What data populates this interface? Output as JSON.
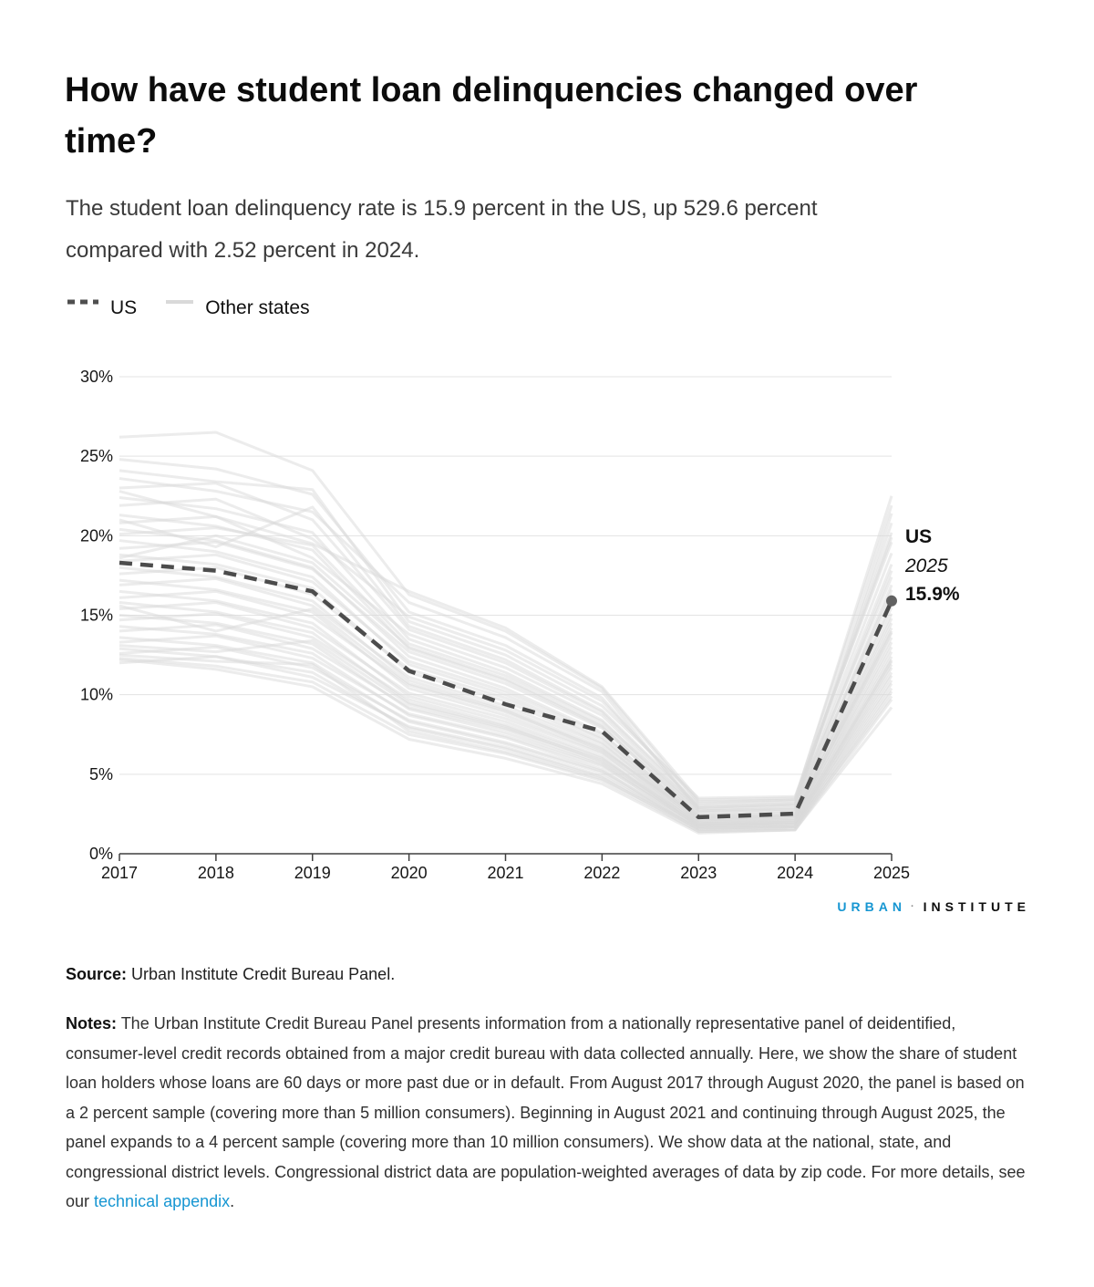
{
  "page": {
    "title": "How have student loan delinquencies changed over time?",
    "title_lines": [
      "How have student loan delinquencies changed over",
      "time?"
    ],
    "subtitle_lines": [
      "The student loan delinquency rate is 15.9 percent in the US, up 529.6 percent",
      "compared with 2.52 percent in 2024."
    ],
    "legend": {
      "us_label": "US",
      "other_label": "Other states"
    },
    "logo": {
      "urban": "URBAN",
      "separator": "·",
      "institute": "INSTITUTE"
    },
    "source_label": "Source:",
    "source_text": " Urban Institute Credit Bureau Panel.",
    "notes_label": "Notes:",
    "notes_text_before_link": " The Urban Institute Credit Bureau Panel presents information from a nationally representative panel of deidentified, consumer-level credit records obtained from a major credit bureau with data collected annually. Here, we show the share of student loan holders whose loans are 60 days or more past due or in default. From August 2017 through August 2020, the panel is based on a 2 percent sample (covering more than 5 million consumers). Beginning in August 2021 and continuing through August 2025, the panel expands to a 4 percent sample (covering more than 10 million consumers). We show data at the national, state, and congressional district levels. Congressional district data are population-weighted averages of data by zip code. For more details, see our ",
    "notes_link": "technical appendix",
    "notes_after_link": "."
  },
  "colors": {
    "us_line": "#4c4c4c",
    "us_dot": "#616161",
    "state_line": "#d9d9d9",
    "gridline": "#e3e3e3",
    "axis": "#3f3f3f",
    "tick_label": "#161616",
    "accent_blue": "#1696d2"
  },
  "chart_data": {
    "type": "line",
    "title": "How have student loan delinquencies changed over time?",
    "xlabel": "",
    "ylabel": "",
    "grid": true,
    "legend_position": "top-left",
    "legend_entries": [
      "US",
      "Other states"
    ],
    "categories": [
      "2017",
      "2018",
      "2019",
      "2020",
      "2021",
      "2022",
      "2023",
      "2024",
      "2025"
    ],
    "yticks": [
      "0%",
      "5%",
      "10%",
      "15%",
      "20%",
      "25%",
      "30%"
    ],
    "ylim": [
      0,
      30
    ],
    "series": [
      {
        "name": "US",
        "values": [
          18.3,
          17.8,
          16.5,
          11.5,
          9.4,
          7.7,
          2.3,
          2.52,
          15.9
        ]
      }
    ],
    "annotation": {
      "label": "US",
      "year": "2025",
      "value": "15.9%"
    },
    "other_states": [
      [
        26.2,
        26.5,
        24.1,
        16.3,
        14.0,
        10.4,
        3.2,
        3.4,
        22.5
      ],
      [
        24.8,
        24.2,
        22.6,
        15.2,
        13.1,
        9.8,
        2.9,
        3.1,
        20.8
      ],
      [
        24.1,
        23.4,
        22.9,
        14.6,
        12.5,
        9.3,
        3.5,
        3.6,
        19.6
      ],
      [
        23.6,
        22.8,
        21.5,
        15.8,
        13.6,
        10.2,
        2.7,
        2.9,
        21.4
      ],
      [
        23.0,
        23.3,
        21.0,
        14.1,
        12.0,
        8.9,
        3.0,
        3.2,
        18.9
      ],
      [
        22.4,
        21.7,
        20.2,
        13.5,
        11.4,
        8.4,
        2.6,
        2.8,
        17.8
      ],
      [
        21.9,
        22.3,
        19.8,
        14.9,
        12.8,
        9.6,
        3.3,
        3.4,
        19.9
      ],
      [
        21.3,
        20.6,
        19.1,
        12.9,
        10.9,
        8.0,
        2.4,
        2.6,
        16.9
      ],
      [
        20.8,
        21.2,
        18.6,
        13.8,
        11.7,
        8.7,
        2.8,
        3.0,
        18.2
      ],
      [
        20.4,
        19.7,
        18.0,
        12.4,
        10.4,
        7.6,
        2.2,
        2.4,
        15.8
      ],
      [
        20.1,
        20.5,
        19.4,
        13.2,
        11.2,
        8.3,
        2.9,
        3.1,
        17.4
      ],
      [
        19.7,
        19.0,
        17.4,
        11.9,
        10.0,
        7.3,
        2.1,
        2.3,
        15.1
      ],
      [
        19.2,
        19.6,
        17.9,
        12.7,
        10.7,
        7.9,
        2.5,
        2.7,
        16.3
      ],
      [
        18.8,
        18.2,
        16.7,
        11.4,
        9.6,
        7.0,
        2.0,
        2.2,
        14.5
      ],
      [
        18.4,
        18.8,
        17.1,
        12.1,
        10.2,
        7.5,
        2.4,
        2.5,
        15.5
      ],
      [
        18.0,
        17.4,
        15.9,
        10.9,
        9.1,
        6.7,
        1.9,
        2.1,
        13.9
      ],
      [
        17.6,
        18.0,
        16.3,
        11.6,
        9.8,
        7.2,
        2.3,
        2.4,
        14.8
      ],
      [
        17.2,
        16.6,
        15.2,
        10.4,
        8.7,
        6.4,
        1.8,
        2.0,
        13.3
      ],
      [
        16.9,
        17.3,
        15.6,
        11.1,
        9.3,
        6.9,
        2.2,
        2.3,
        14.2
      ],
      [
        16.5,
        15.9,
        14.5,
        9.9,
        8.3,
        6.1,
        1.7,
        1.9,
        12.7
      ],
      [
        16.1,
        16.5,
        14.9,
        10.6,
        8.9,
        6.6,
        2.1,
        2.2,
        13.6
      ],
      [
        15.8,
        15.2,
        13.9,
        9.5,
        8.0,
        5.8,
        1.7,
        1.8,
        12.2
      ],
      [
        15.4,
        15.8,
        14.2,
        10.1,
        8.5,
        6.3,
        2.0,
        2.1,
        13.0
      ],
      [
        15.0,
        14.5,
        13.2,
        9.1,
        7.6,
        5.6,
        1.6,
        1.7,
        11.7
      ],
      [
        14.7,
        15.1,
        13.6,
        9.7,
        8.1,
        6.0,
        1.9,
        2.0,
        12.4
      ],
      [
        14.3,
        13.8,
        12.6,
        8.7,
        7.3,
        5.3,
        1.5,
        1.7,
        11.2
      ],
      [
        14.0,
        14.4,
        12.9,
        9.2,
        7.8,
        5.7,
        1.8,
        1.9,
        11.9
      ],
      [
        13.6,
        13.1,
        12.0,
        8.3,
        6.9,
        5.1,
        1.5,
        1.6,
        10.7
      ],
      [
        13.3,
        13.7,
        12.3,
        8.8,
        7.4,
        5.5,
        1.8,
        1.9,
        11.4
      ],
      [
        12.9,
        12.4,
        11.4,
        7.9,
        6.6,
        4.8,
        1.4,
        1.5,
        10.2
      ],
      [
        12.6,
        13.0,
        11.7,
        8.4,
        7.0,
        5.2,
        1.7,
        1.8,
        10.9
      ],
      [
        12.3,
        11.8,
        10.8,
        7.5,
        6.3,
        4.6,
        1.4,
        1.5,
        9.7
      ],
      [
        12.0,
        12.4,
        11.1,
        8.0,
        6.7,
        4.9,
        1.6,
        1.7,
        10.4
      ],
      [
        12.2,
        11.6,
        10.5,
        7.2,
        6.0,
        4.4,
        1.3,
        1.5,
        9.2
      ],
      [
        12.5,
        12.1,
        11.9,
        7.7,
        6.4,
        4.7,
        1.6,
        1.7,
        9.9
      ],
      [
        13.1,
        12.7,
        13.4,
        9.4,
        7.9,
        5.9,
        1.9,
        2.0,
        12.1
      ],
      [
        21.0,
        19.3,
        21.8,
        14.3,
        12.2,
        9.0,
        3.1,
        3.3,
        20.2
      ],
      [
        18.6,
        20.0,
        18.3,
        13.0,
        11.0,
        8.1,
        2.7,
        2.8,
        16.6
      ],
      [
        15.6,
        14.0,
        15.4,
        10.7,
        9.0,
        6.5,
        2.3,
        2.4,
        14.0
      ],
      [
        22.8,
        21.2,
        19.5,
        16.5,
        14.2,
        10.5,
        3.4,
        3.5,
        21.9
      ]
    ]
  }
}
